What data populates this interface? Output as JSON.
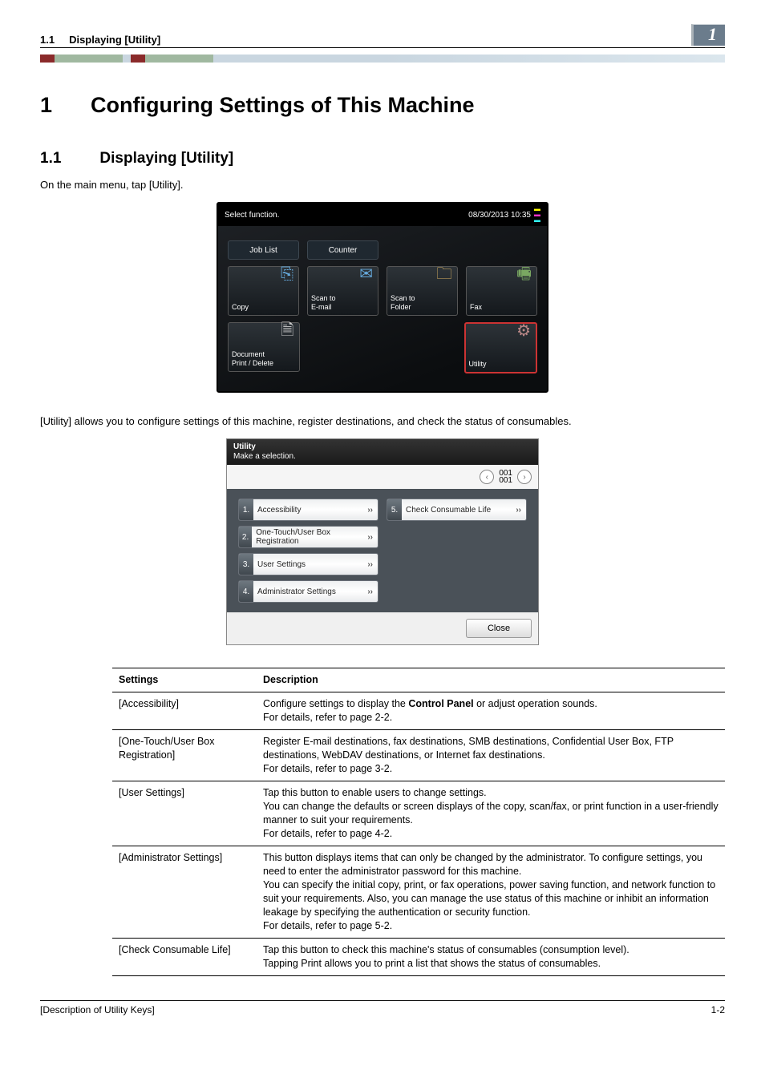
{
  "header": {
    "section_no": "1.1",
    "section_title": "Displaying [Utility]",
    "badge": "1"
  },
  "chapter": {
    "num": "1",
    "title": "Configuring Settings of This Machine"
  },
  "section": {
    "num": "1.1",
    "title": "Displaying [Utility]",
    "intro": "On the main menu, tap [Utility].",
    "after_mm": "[Utility] allows you to configure settings of this machine, register destinations, and check the status of consumables."
  },
  "mm": {
    "select_label": "Select function.",
    "datetime": "08/30/2013 10:35",
    "job_list": "Job List",
    "counter": "Counter",
    "tiles": {
      "copy": "Copy",
      "scan_email": "Scan to\nE-mail",
      "scan_folder": "Scan to\nFolder",
      "fax": "Fax",
      "doc_print": "Document\nPrint / Delete",
      "utility": "Utility"
    }
  },
  "ut": {
    "title": "Utility",
    "sub": "Make a selection.",
    "page": "001",
    "page_total": "001",
    "items": [
      {
        "n": "1.",
        "label": "Accessibility"
      },
      {
        "n": "5.",
        "label": "Check Consumable Life"
      },
      {
        "n": "2.",
        "label": "One-Touch/User Box Registration"
      },
      {
        "n": "",
        "label": ""
      },
      {
        "n": "3.",
        "label": "User Settings"
      },
      {
        "n": "",
        "label": ""
      },
      {
        "n": "4.",
        "label": "Administrator Settings"
      },
      {
        "n": "",
        "label": ""
      }
    ],
    "close": "Close"
  },
  "table": {
    "h1": "Settings",
    "h2": "Description",
    "rows": [
      {
        "s": "[Accessibility]",
        "d": "Configure settings to display the <b>Control Panel</b> or adjust operation sounds.<br>For details, refer to page 2-2."
      },
      {
        "s": "[One-Touch/User Box Registration]",
        "d": "Register E-mail destinations, fax destinations, SMB destinations, Confidential User Box, FTP destinations, WebDAV destinations, or Internet fax destinations.<br>For details, refer to page 3-2."
      },
      {
        "s": "[User Settings]",
        "d": "Tap this button to enable users to change settings.<br>You can change the defaults or screen displays of the copy, scan/fax, or print function in a user-friendly manner to suit your requirements.<br>For details, refer to page 4-2."
      },
      {
        "s": "[Administrator Settings]",
        "d": "This button displays items that can only be changed by the administrator. To configure settings, you need to enter the administrator password for this machine.<br>You can specify the initial copy, print, or fax operations, power saving function, and network function to suit your requirements. Also, you can manage the use status of this machine or inhibit an information leakage by specifying the authentication or security function.<br>For details, refer to page 5-2."
      },
      {
        "s": "[Check Consumable Life]",
        "d": "Tap this button to check this machine's status of consumables (consumption level).<br>Tapping Print allows you to print a list that shows the status of consumables."
      }
    ]
  },
  "footer": {
    "left": "[Description of Utility Keys]",
    "right": "1-2"
  }
}
